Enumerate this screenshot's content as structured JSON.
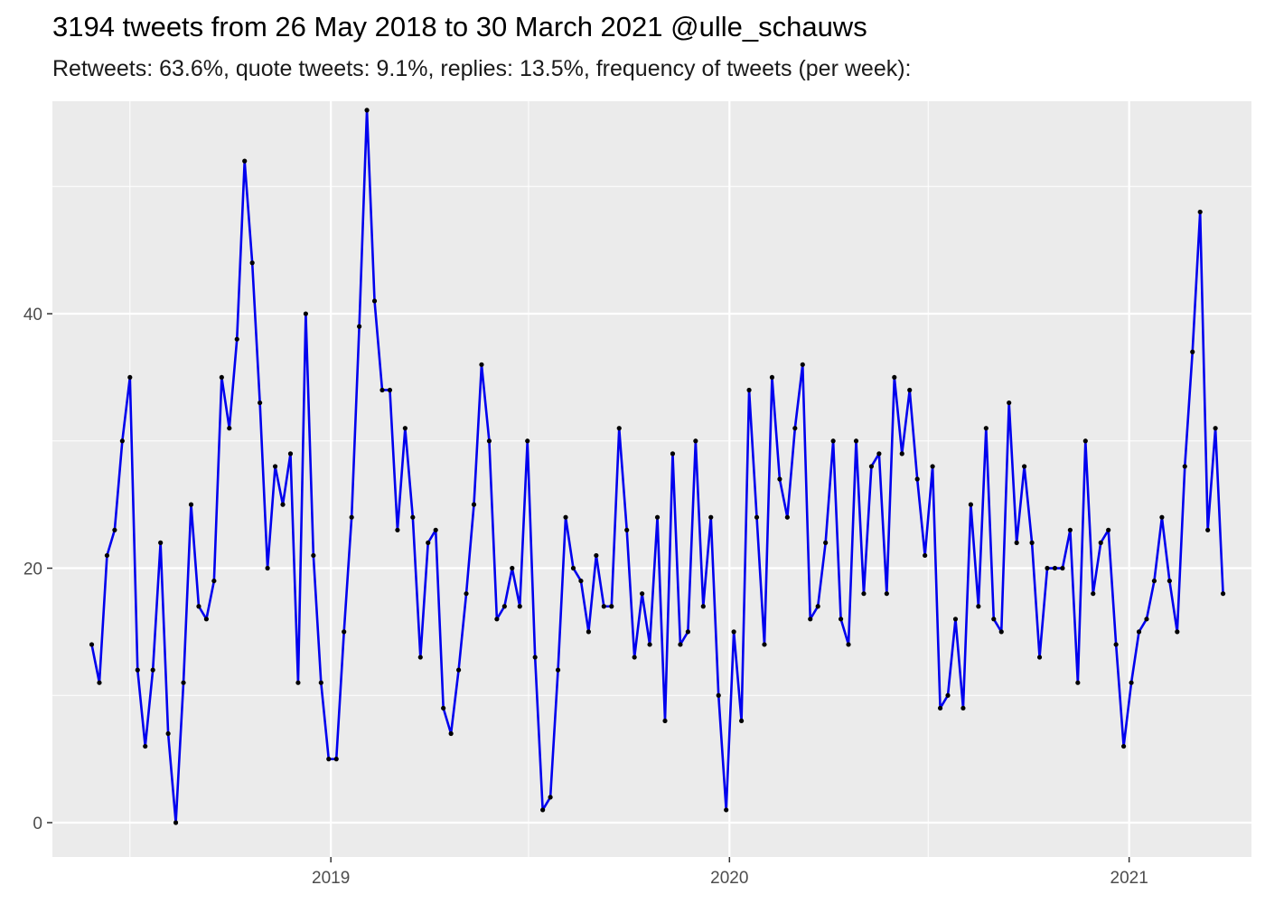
{
  "chart_data": {
    "type": "line",
    "title": "3194 tweets from 26 May 2018 to 30 March 2021 @ulle_schauws",
    "subtitle": "Retweets: 63.6%, quote tweets: 9.1%, replies: 13.5%, frequency of tweets (per week):",
    "xlabel": "",
    "ylabel": "",
    "x_start": "2018-05-27",
    "x_step_days": 7,
    "xlim": [
      "2018-04-21",
      "2021-04-23"
    ],
    "ylim": [
      -2.7,
      56.7
    ],
    "y_ticks": [
      0,
      20,
      40
    ],
    "x_ticks": [
      {
        "date": "2019-01-01",
        "label": "2019"
      },
      {
        "date": "2020-01-01",
        "label": "2020"
      },
      {
        "date": "2021-01-01",
        "label": "2021"
      }
    ],
    "x_minor_breaks": [
      "2018-07-01",
      "2019-07-01",
      "2020-07-01"
    ],
    "grid": true,
    "legend": "none",
    "line_color": "#0000ee",
    "point_color": "#000000",
    "panel_color": "#ebebeb",
    "values": [
      14,
      11,
      21,
      23,
      30,
      35,
      12,
      6,
      12,
      22,
      7,
      0,
      11,
      25,
      17,
      16,
      19,
      35,
      31,
      38,
      52,
      44,
      33,
      20,
      28,
      25,
      29,
      11,
      40,
      21,
      11,
      5,
      5,
      15,
      24,
      39,
      56,
      41,
      34,
      34,
      23,
      31,
      24,
      13,
      22,
      23,
      9,
      7,
      12,
      18,
      25,
      36,
      30,
      16,
      17,
      20,
      17,
      30,
      13,
      1,
      2,
      12,
      24,
      20,
      19,
      15,
      21,
      17,
      17,
      31,
      23,
      13,
      18,
      14,
      24,
      8,
      29,
      14,
      15,
      30,
      17,
      24,
      10,
      1,
      15,
      8,
      34,
      24,
      14,
      35,
      27,
      24,
      31,
      36,
      16,
      17,
      22,
      30,
      16,
      14,
      30,
      18,
      28,
      29,
      18,
      35,
      29,
      34,
      27,
      21,
      28,
      9,
      10,
      16,
      9,
      25,
      17,
      31,
      16,
      15,
      33,
      22,
      28,
      22,
      13,
      20,
      20,
      20,
      23,
      11,
      30,
      18,
      22,
      23,
      14,
      6,
      11,
      15,
      16,
      19,
      24,
      19,
      15,
      28,
      37,
      48,
      23,
      31,
      18
    ]
  }
}
